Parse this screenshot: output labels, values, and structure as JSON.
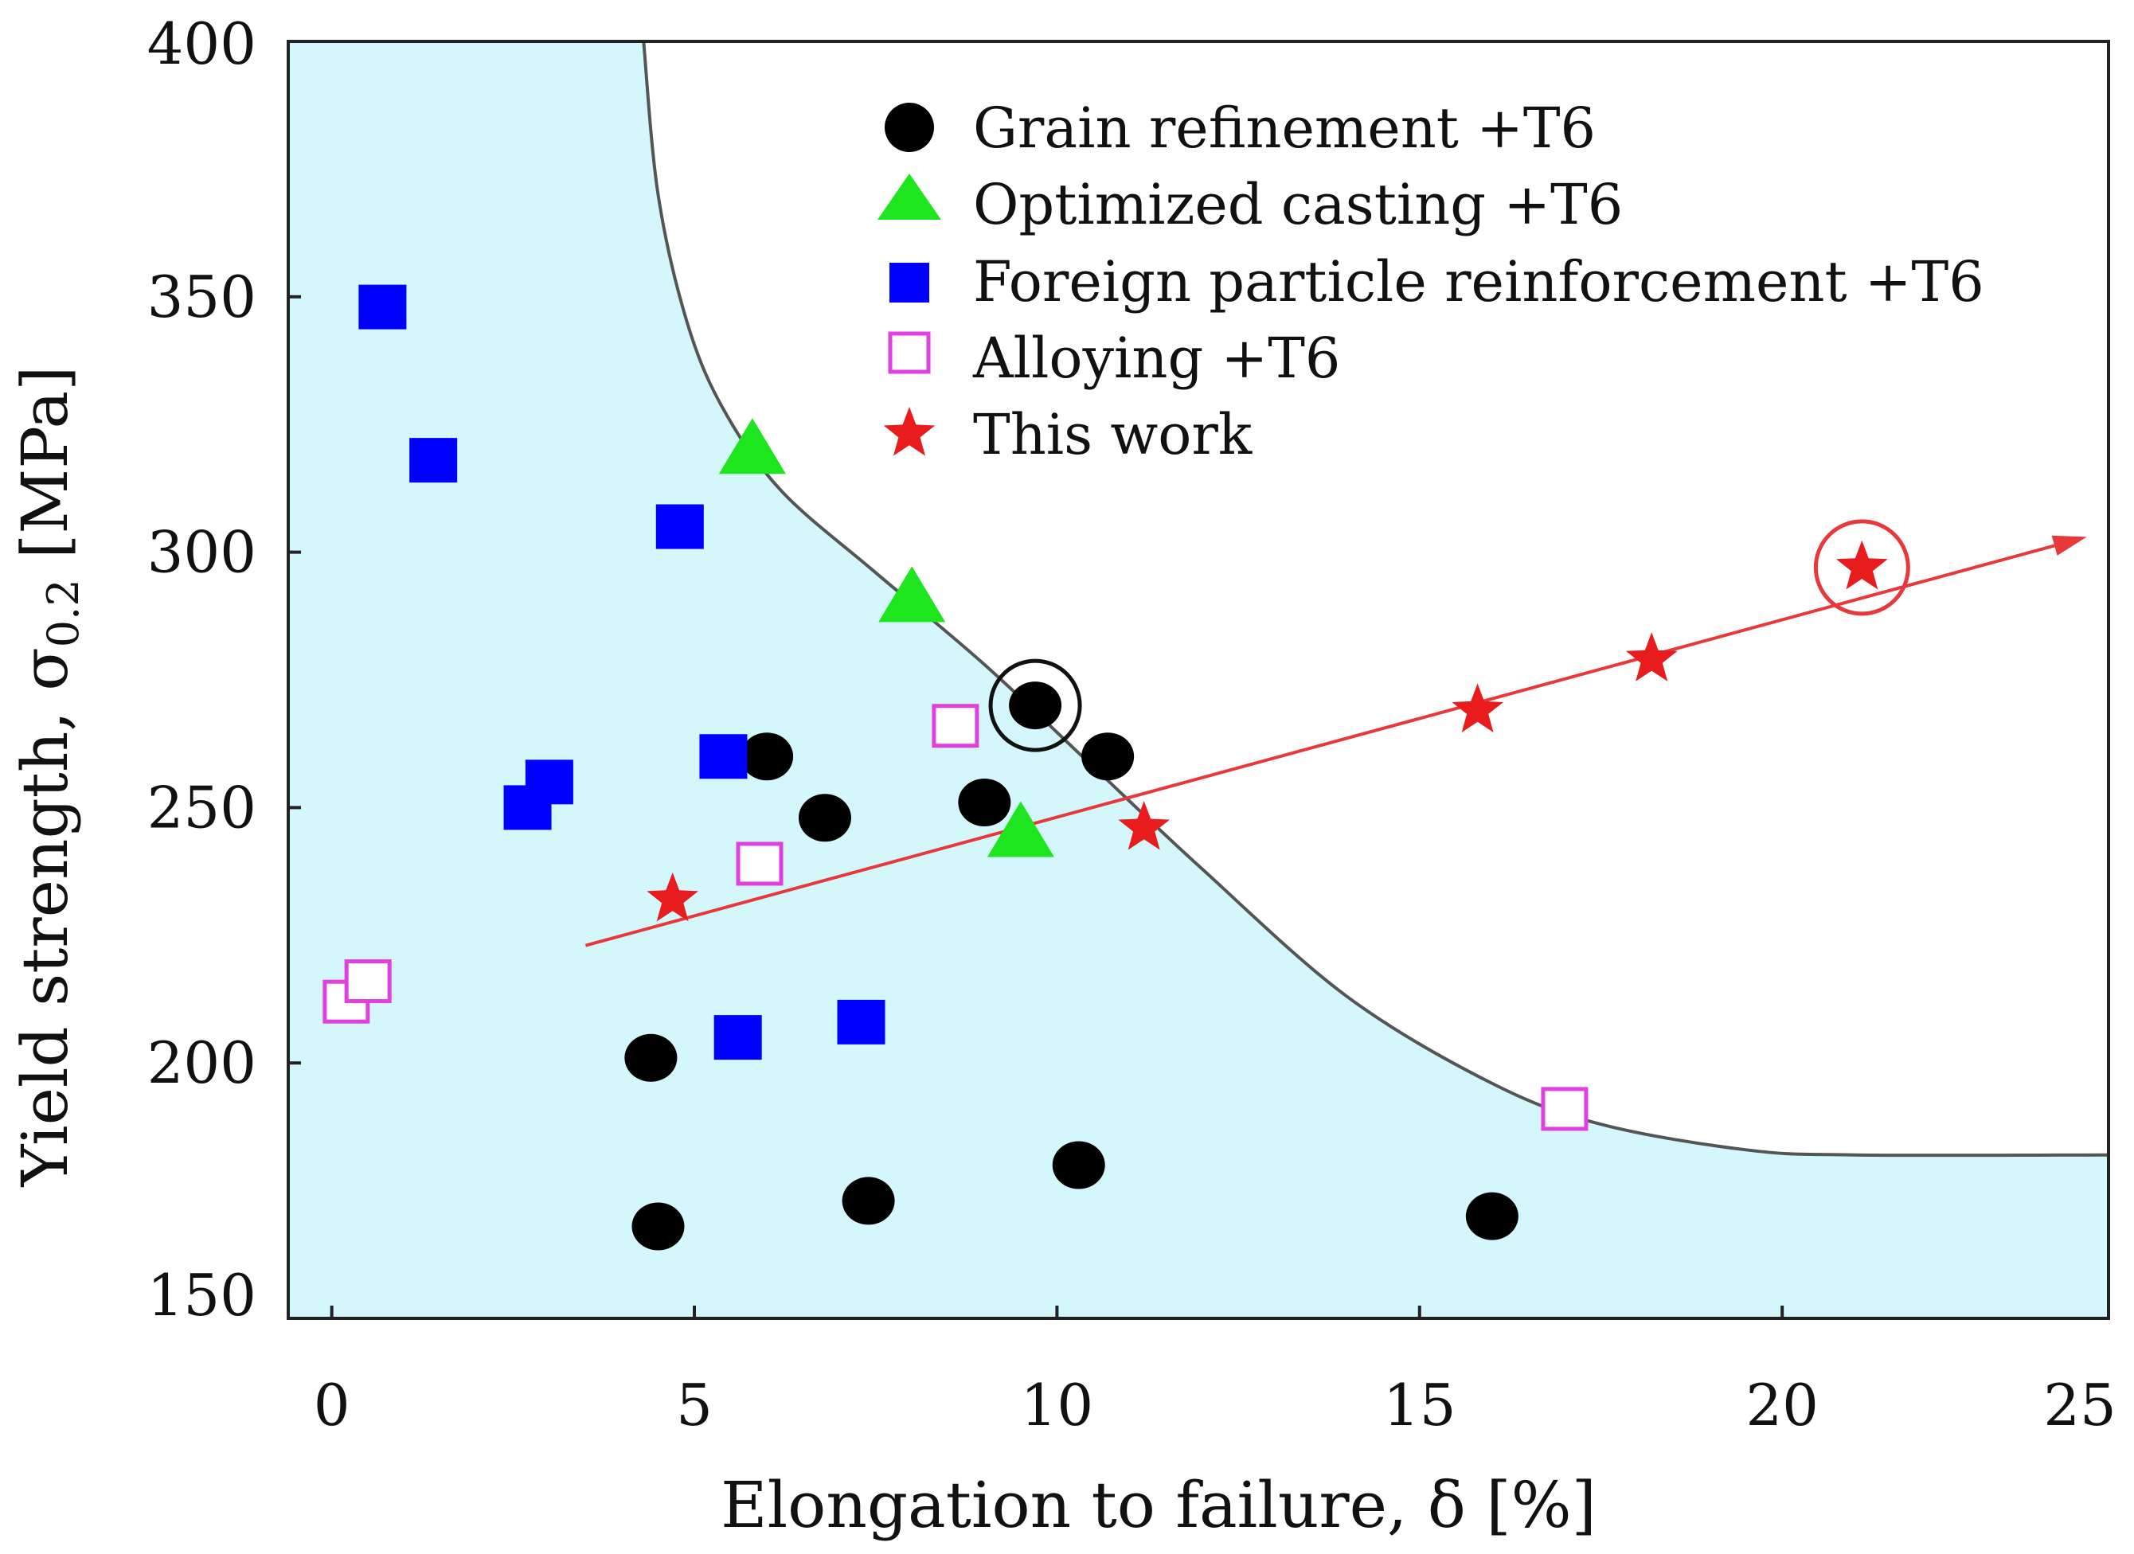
{
  "chart_data": {
    "type": "scatter",
    "title": "",
    "xlabel": "Elongation to failure, δ [%]",
    "ylabel": {
      "main": "Yield strength, σ",
      "subscript": "0.2",
      "unit": " [MPa]"
    },
    "xlim": [
      -0.6,
      24.5
    ],
    "ylim": [
      150,
      400
    ],
    "x_ticks": [
      0,
      5,
      10,
      15,
      20,
      25
    ],
    "y_ticks": [
      150,
      200,
      250,
      300,
      350,
      400
    ],
    "grid": false,
    "legend_position": "top",
    "colors": {
      "region_fill": "#d4f7fb",
      "boundary": "#555555",
      "trend": "#e8383a",
      "grain": "#000000",
      "casting": "#1ee61e",
      "foreign": "#0000ff",
      "alloying": "#e040e0",
      "this_work": "#e81c1c"
    },
    "series": [
      {
        "name": "Grain refinement +T6",
        "marker": "circle",
        "points": [
          {
            "x": 6.0,
            "y": 260
          },
          {
            "x": 6.8,
            "y": 248
          },
          {
            "x": 9.0,
            "y": 251
          },
          {
            "x": 9.7,
            "y": 270
          },
          {
            "x": 10.7,
            "y": 260
          },
          {
            "x": 4.4,
            "y": 201
          },
          {
            "x": 4.5,
            "y": 168
          },
          {
            "x": 7.4,
            "y": 173
          },
          {
            "x": 10.3,
            "y": 180
          },
          {
            "x": 16.0,
            "y": 170
          }
        ]
      },
      {
        "name": "Optimized casting +T6",
        "marker": "triangle",
        "points": [
          {
            "x": 5.8,
            "y": 320
          },
          {
            "x": 8.0,
            "y": 291
          },
          {
            "x": 9.5,
            "y": 245
          }
        ]
      },
      {
        "name": "Foreign particle reinforcement +T6",
        "marker": "square",
        "points": [
          {
            "x": 0.7,
            "y": 348
          },
          {
            "x": 1.4,
            "y": 318
          },
          {
            "x": 4.8,
            "y": 305
          },
          {
            "x": 2.7,
            "y": 250
          },
          {
            "x": 3.0,
            "y": 255
          },
          {
            "x": 5.4,
            "y": 260
          },
          {
            "x": 5.6,
            "y": 205
          },
          {
            "x": 7.3,
            "y": 208
          }
        ]
      },
      {
        "name": "Alloying +T6",
        "marker": "open-square",
        "points": [
          {
            "x": 0.2,
            "y": 212
          },
          {
            "x": 0.5,
            "y": 216
          },
          {
            "x": 5.9,
            "y": 239
          },
          {
            "x": 8.6,
            "y": 266
          },
          {
            "x": 17.0,
            "y": 191
          }
        ]
      },
      {
        "name": "This work",
        "marker": "star",
        "points": [
          {
            "x": 4.7,
            "y": 232
          },
          {
            "x": 11.2,
            "y": 246
          },
          {
            "x": 15.8,
            "y": 269
          },
          {
            "x": 18.2,
            "y": 279
          },
          {
            "x": 21.1,
            "y": 297
          }
        ]
      }
    ],
    "highlighted_points": [
      {
        "series": "Grain refinement +T6",
        "x": 9.7,
        "y": 270
      },
      {
        "series": "This work",
        "x": 21.1,
        "y": 297
      }
    ],
    "trend_arrow": {
      "from": {
        "x": 3.5,
        "y": 223
      },
      "to": {
        "x": 24.2,
        "y": 303
      }
    },
    "boundary_curve": [
      {
        "x": 4.3,
        "y": 400
      },
      {
        "x": 4.5,
        "y": 370
      },
      {
        "x": 4.9,
        "y": 345
      },
      {
        "x": 5.4,
        "y": 328
      },
      {
        "x": 6.2,
        "y": 312
      },
      {
        "x": 7.5,
        "y": 296
      },
      {
        "x": 9.0,
        "y": 278
      },
      {
        "x": 10.5,
        "y": 258
      },
      {
        "x": 12.0,
        "y": 238
      },
      {
        "x": 14.0,
        "y": 213
      },
      {
        "x": 16.0,
        "y": 196
      },
      {
        "x": 17.5,
        "y": 188
      },
      {
        "x": 19.5,
        "y": 183
      },
      {
        "x": 21.0,
        "y": 182
      },
      {
        "x": 24.5,
        "y": 182
      }
    ]
  }
}
